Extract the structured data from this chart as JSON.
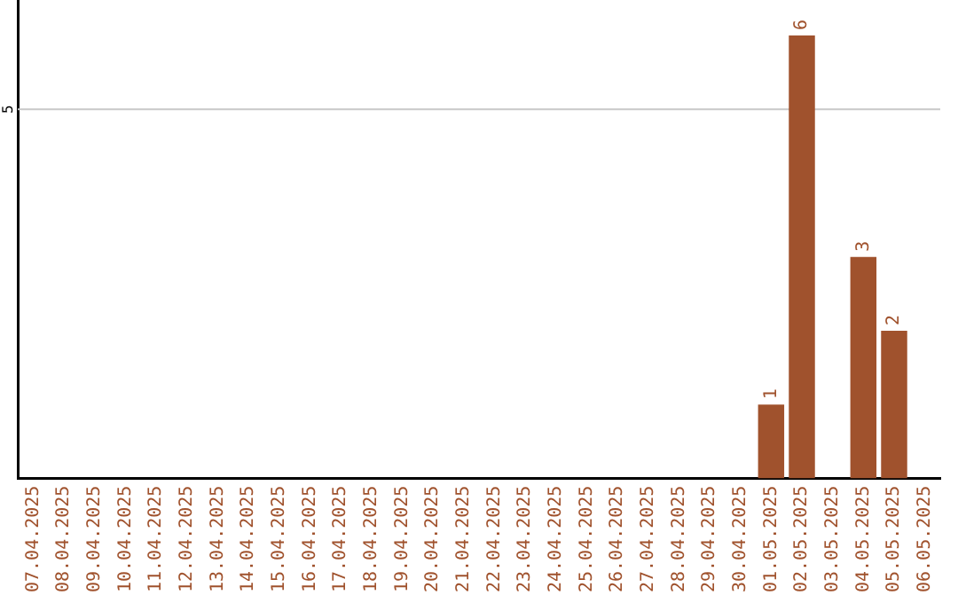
{
  "chart_data": {
    "type": "bar",
    "categories": [
      "07.04.2025",
      "08.04.2025",
      "09.04.2025",
      "10.04.2025",
      "11.04.2025",
      "12.04.2025",
      "13.04.2025",
      "14.04.2025",
      "15.04.2025",
      "16.04.2025",
      "17.04.2025",
      "18.04.2025",
      "19.04.2025",
      "20.04.2025",
      "21.04.2025",
      "22.04.2025",
      "23.04.2025",
      "24.04.2025",
      "25.04.2025",
      "26.04.2025",
      "27.04.2025",
      "28.04.2025",
      "29.04.2025",
      "30.04.2025",
      "01.05.2025",
      "02.05.2025",
      "03.05.2025",
      "04.05.2025",
      "05.05.2025",
      "06.05.2025"
    ],
    "values": [
      null,
      null,
      null,
      null,
      null,
      null,
      null,
      null,
      null,
      null,
      null,
      null,
      null,
      null,
      null,
      null,
      null,
      null,
      null,
      null,
      null,
      null,
      null,
      null,
      1,
      6,
      null,
      3,
      2,
      null
    ],
    "data_labels": true,
    "color": "#a0522d",
    "ref_lines": [
      {
        "axis": "y",
        "value": 5,
        "label": "5",
        "color": "#c8c8c8"
      }
    ],
    "legend": false
  }
}
